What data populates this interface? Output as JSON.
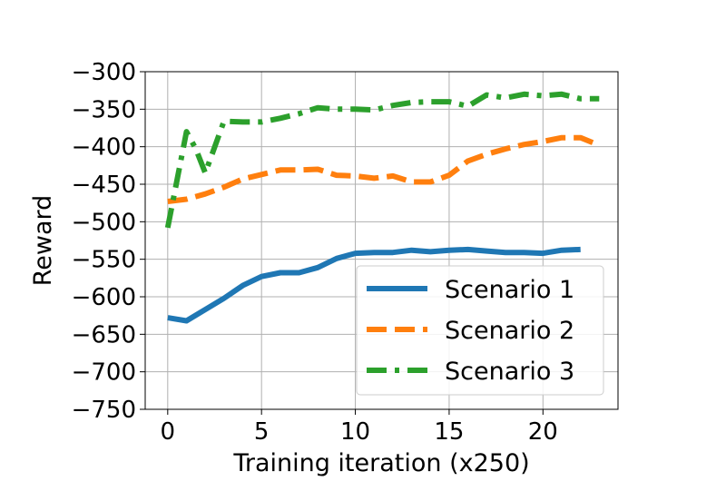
{
  "chart_data": {
    "type": "line",
    "title": "",
    "xlabel": "Training iteration (x250)",
    "ylabel": "Reward",
    "xlim": [
      -1.2,
      24
    ],
    "ylim": [
      -750,
      -300
    ],
    "x_ticks": [
      0,
      5,
      10,
      15,
      20
    ],
    "y_ticks": [
      -300,
      -350,
      -400,
      -450,
      -500,
      -550,
      -600,
      -650,
      -700,
      -750
    ],
    "grid": true,
    "legend_position": "lower right",
    "series": [
      {
        "name": "Scenario 1",
        "color": "#1f77b4",
        "dash": "solid",
        "x": [
          0,
          1,
          2,
          3,
          4,
          5,
          6,
          7,
          8,
          9,
          10,
          11,
          12,
          13,
          14,
          15,
          16,
          17,
          18,
          19,
          20,
          21,
          22
        ],
        "values": [
          -628,
          -632,
          -617,
          -602,
          -585,
          -573,
          -568,
          -568,
          -561,
          -549,
          -542,
          -541,
          -541,
          -538,
          -540,
          -538,
          -537,
          -539,
          -541,
          -541,
          -542,
          -538,
          -537
        ]
      },
      {
        "name": "Scenario 2",
        "color": "#ff7f0e",
        "dash": "dashed",
        "x": [
          0,
          1,
          2,
          3,
          4,
          5,
          6,
          7,
          8,
          9,
          10,
          11,
          12,
          13,
          14,
          15,
          16,
          17,
          18,
          19,
          20,
          21,
          22,
          23
        ],
        "values": [
          -473,
          -470,
          -463,
          -454,
          -443,
          -437,
          -431,
          -431,
          -430,
          -438,
          -439,
          -442,
          -439,
          -447,
          -447,
          -438,
          -419,
          -410,
          -403,
          -397,
          -393,
          -388,
          -388,
          -398
        ]
      },
      {
        "name": "Scenario 3",
        "color": "#2ca02c",
        "dash": "dashdot",
        "x": [
          0,
          1,
          1.5,
          2,
          3,
          4,
          5,
          6,
          7,
          8,
          9,
          10,
          11,
          12,
          13,
          14,
          15,
          16,
          17,
          18,
          19,
          20,
          21,
          22,
          23
        ],
        "values": [
          -508,
          -380,
          -403,
          -435,
          -366,
          -367,
          -367,
          -362,
          -356,
          -348,
          -350,
          -350,
          -351,
          -345,
          -341,
          -340,
          -340,
          -346,
          -331,
          -335,
          -330,
          -332,
          -330,
          -336,
          -336
        ]
      }
    ]
  }
}
